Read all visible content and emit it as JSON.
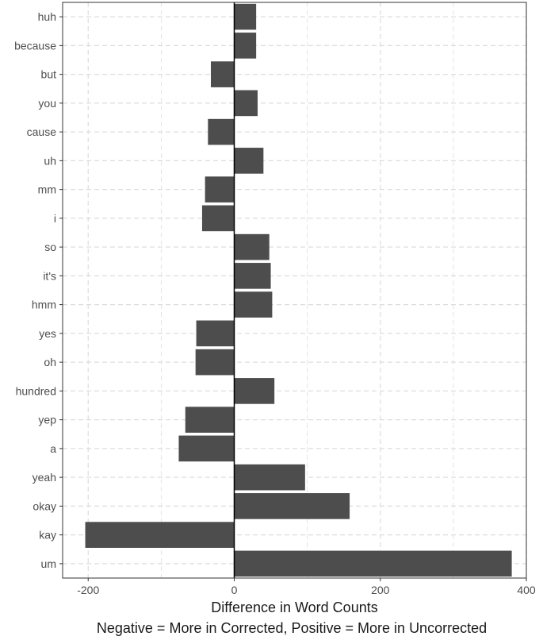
{
  "chart_data": {
    "type": "bar",
    "orientation": "horizontal",
    "categories": [
      "huh",
      "because",
      "but",
      "you",
      "cause",
      "uh",
      "mm",
      "i",
      "so",
      "it's",
      "hmm",
      "yes",
      "oh",
      "hundred",
      "yep",
      "a",
      "yeah",
      "okay",
      "kay",
      "um"
    ],
    "values": [
      30,
      30,
      -32,
      32,
      -36,
      40,
      -40,
      -44,
      48,
      50,
      52,
      -52,
      -53,
      55,
      -67,
      -76,
      97,
      158,
      -204,
      380
    ],
    "xlabel": "Difference in Word Counts",
    "xlabel_line2": "Negative = More in Corrected, Positive = More in Uncorrected",
    "ylabel": "",
    "xlim": [
      -235,
      400
    ],
    "xticks": [
      -200,
      0,
      200,
      400
    ],
    "xtick_labels": [
      "-200",
      "0",
      "200",
      "400"
    ],
    "grid": true,
    "legend": "none",
    "bar_color": "#4d4d4d",
    "grid_color": "#dddddd",
    "zero_line_color": "#000000"
  }
}
